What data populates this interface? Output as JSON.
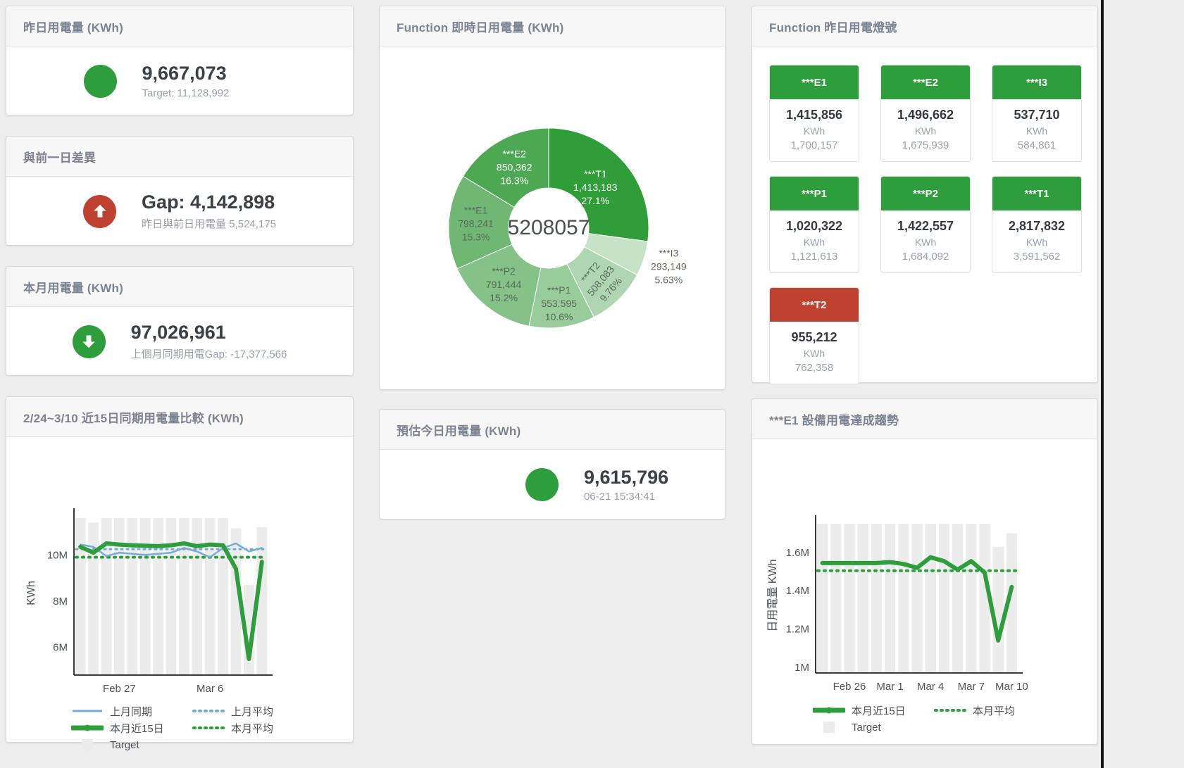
{
  "colors": {
    "green": "#2e9e3c",
    "red": "#bf4230",
    "blue": "#76abd4",
    "target_bar": "#ececec",
    "title_text": "#7b8493",
    "value_text": "#3b4045",
    "sub_text": "#98a0a8",
    "tick_text": "#4e5256"
  },
  "panels": {
    "yesterday": {
      "title": "昨日用電量 (KWh)",
      "value": "9,667,073",
      "subtitle": "Target: 11,128,992",
      "status_color": "#2e9e3c"
    },
    "gap_prev_day": {
      "title": "與前一日差異",
      "value": "Gap: 4,142,898",
      "subtitle": "昨日與前日用電量 5,524,175",
      "status_color": "#bf4230",
      "direction": "up"
    },
    "month": {
      "title": "本月用電量 (KWh)",
      "value": "97,026,961",
      "subtitle": "上個月同期用電Gap: -17,377,566",
      "status_color": "#2e9e3c",
      "direction": "down"
    },
    "estimate": {
      "title": "預估今日用電量 (KWh)",
      "value": "9,615,796",
      "subtitle": "06-21 15:34:41",
      "status_color": "#2e9e3c"
    },
    "lights": {
      "title": "Function 昨日用電燈號",
      "unit": "KWh",
      "tiles": [
        {
          "name": "***E1",
          "value": "1,415,856",
          "target": "1,700,157",
          "status": "green"
        },
        {
          "name": "***E2",
          "value": "1,496,662",
          "target": "1,675,939",
          "status": "green"
        },
        {
          "name": "***I3",
          "value": "537,710",
          "target": "584,861",
          "status": "green"
        },
        {
          "name": "***P1",
          "value": "1,020,322",
          "target": "1,121,613",
          "status": "green"
        },
        {
          "name": "***P2",
          "value": "1,422,557",
          "target": "1,684,092",
          "status": "green"
        },
        {
          "name": "***T1",
          "value": "2,817,832",
          "target": "3,591,562",
          "status": "green"
        },
        {
          "name": "***T2",
          "value": "955,212",
          "target": "762,358",
          "status": "red"
        }
      ]
    }
  },
  "chart_data": [
    {
      "type": "pie",
      "title": "Function 即時日用電量 (KWh)",
      "center_total": "5208057",
      "slices": [
        {
          "label": "***T1",
          "value": 1413183,
          "pct": "27.1%",
          "color": "#2f9e38",
          "text": "#ffffff"
        },
        {
          "label": "***I3",
          "value": 293149,
          "pct": "5.63%",
          "color": "#c6e3c7",
          "text": "#5a6b5c"
        },
        {
          "label": "***T2",
          "value": 508083,
          "pct": "9.76%",
          "color": "#aed6b0",
          "text": "#5a6b5c"
        },
        {
          "label": "***P1",
          "value": 553595,
          "pct": "10.6%",
          "color": "#99cc9b",
          "text": "#5a6b5c"
        },
        {
          "label": "***P2",
          "value": 791444,
          "pct": "15.2%",
          "color": "#84c287",
          "text": "#5a6b5c"
        },
        {
          "label": "***E1",
          "value": 798241,
          "pct": "15.3%",
          "color": "#6fb773",
          "text": "#5a6b5c"
        },
        {
          "label": "***E2",
          "value": 850362,
          "pct": "16.3%",
          "color": "#4da853",
          "text": "#ffffff"
        }
      ]
    },
    {
      "type": "line",
      "title": "2/24~3/10 近15日同期用電量比較 (KWh)",
      "ylabel": "KWh",
      "ylim": [
        4800000,
        11900000
      ],
      "y_ticks": [
        {
          "value": 6000000,
          "label": "6M"
        },
        {
          "value": 8000000,
          "label": "8M"
        },
        {
          "value": 10000000,
          "label": "10M"
        }
      ],
      "x_ticks": [
        {
          "index": 3,
          "label": "Feb 27"
        },
        {
          "index": 10,
          "label": "Mar 6"
        }
      ],
      "target_bars": [
        11600000,
        11400000,
        11600000,
        11600000,
        11600000,
        11600000,
        11600000,
        11600000,
        11600000,
        11600000,
        11600000,
        11600000,
        11150000,
        8700000,
        11200000
      ],
      "series": [
        {
          "name": "上月平均",
          "color": "#76abd4",
          "width": 3,
          "dash": "2 6",
          "const": 10250000
        },
        {
          "name": "本月平均",
          "color": "#2e9e3c",
          "width": 4,
          "dash": "2 7",
          "const": 9900000
        },
        {
          "name": "上月同期",
          "color": "#76abd4",
          "width": 2.5,
          "values": [
            10450000,
            10350000,
            9950000,
            10100000,
            10050000,
            10000000,
            10050000,
            10100000,
            10300000,
            10150000,
            9900000,
            10300000,
            10500000,
            10150000,
            10300000
          ]
        },
        {
          "name": "本月近15日",
          "color": "#2e9e3c",
          "width": 6,
          "values": [
            10350000,
            10100000,
            10500000,
            10450000,
            10420000,
            10400000,
            10380000,
            10420000,
            10500000,
            10380000,
            10450000,
            10420000,
            9400000,
            5500000,
            9700000
          ]
        }
      ],
      "legend": [
        {
          "label": "上月同期",
          "swatch": "line",
          "color": "#76abd4"
        },
        {
          "label": "上月平均",
          "swatch": "dash",
          "color": "#76abd4"
        },
        {
          "label": "本月近15日",
          "swatch": "thick",
          "color": "#2e9e3c"
        },
        {
          "label": "本月平均",
          "swatch": "dash",
          "color": "#2e9e3c"
        },
        {
          "label": "Target",
          "swatch": "square",
          "color": "#ececec"
        }
      ]
    },
    {
      "type": "line",
      "title": "***E1 設備用電達成趨勢",
      "ylabel": "日用電量 KWh",
      "ylim": [
        970000,
        1780000
      ],
      "y_ticks": [
        {
          "value": 1000000,
          "label": "1M"
        },
        {
          "value": 1200000,
          "label": "1.2M"
        },
        {
          "value": 1400000,
          "label": "1.4M"
        },
        {
          "value": 1600000,
          "label": "1.6M"
        }
      ],
      "x_ticks": [
        {
          "index": 2,
          "label": "Feb 26"
        },
        {
          "index": 5,
          "label": "Mar 1"
        },
        {
          "index": 8,
          "label": "Mar 4"
        },
        {
          "index": 11,
          "label": "Mar 7"
        },
        {
          "index": 14,
          "label": "Mar 10"
        }
      ],
      "target_bars": [
        1750000,
        1750000,
        1750000,
        1750000,
        1750000,
        1750000,
        1750000,
        1750000,
        1750000,
        1750000,
        1750000,
        1750000,
        1750000,
        1630000,
        1700000
      ],
      "series": [
        {
          "name": "本月平均",
          "color": "#2e9e3c",
          "width": 4,
          "dash": "2 7",
          "const": 1505000
        },
        {
          "name": "本月近15日",
          "color": "#2e9e3c",
          "width": 6,
          "values": [
            1545000,
            1545000,
            1545000,
            1545000,
            1545000,
            1550000,
            1540000,
            1520000,
            1575000,
            1555000,
            1510000,
            1555000,
            1495000,
            1140000,
            1420000
          ]
        }
      ],
      "legend": [
        {
          "label": "本月近15日",
          "swatch": "thick",
          "color": "#2e9e3c"
        },
        {
          "label": "本月平均",
          "swatch": "dash",
          "color": "#2e9e3c"
        },
        {
          "label": "Target",
          "swatch": "square",
          "color": "#ececec"
        }
      ]
    }
  ]
}
